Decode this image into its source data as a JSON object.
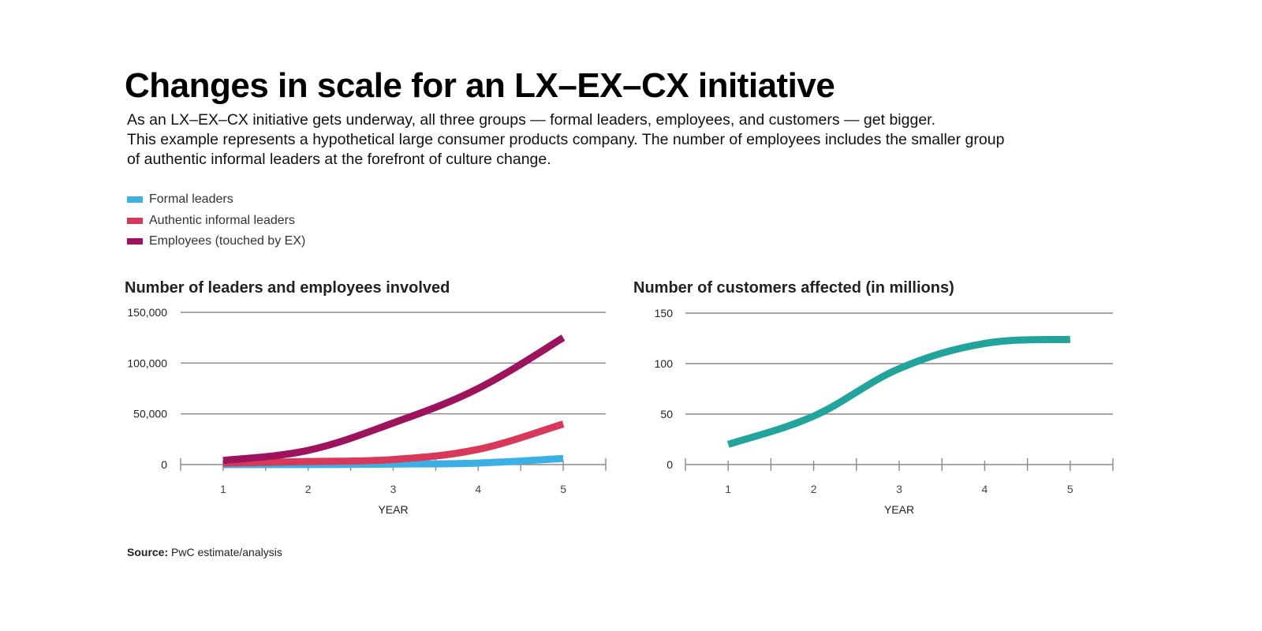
{
  "title": "Changes in scale for an LX–EX–CX initiative",
  "subtitle_lines": [
    "As an LX–EX–CX initiative gets underway, all three groups — formal leaders, employees, and customers — get bigger.",
    "This example represents a hypothetical large consumer products company. The number of employees includes the smaller group",
    "of authentic informal leaders at the forefront of culture change."
  ],
  "legend": [
    {
      "label": "Formal leaders",
      "color": "#3bb0e4"
    },
    {
      "label": "Authentic informal leaders",
      "color": "#d8395a"
    },
    {
      "label": "Employees (touched by EX)",
      "color": "#9e135e"
    }
  ],
  "source": {
    "label": "Source:",
    "text": "PwC estimate/analysis"
  },
  "chart_data": [
    {
      "type": "line",
      "title": "Number of leaders and employees involved",
      "xlabel": "YEAR",
      "ylabel": "",
      "x": [
        1,
        2,
        3,
        4,
        5
      ],
      "xticks": [
        "1",
        "2",
        "3",
        "4",
        "5"
      ],
      "xlim": [
        0.5,
        5.5
      ],
      "ylim": [
        0,
        150000
      ],
      "yticks": [
        0,
        50000,
        100000,
        150000
      ],
      "ytick_labels": [
        "0",
        "50,000",
        "100,000",
        "150,000"
      ],
      "grid": true,
      "legend_position": "top-left",
      "series": [
        {
          "name": "Employees (touched by EX)",
          "color": "#9e135e",
          "values": [
            4000,
            14000,
            41000,
            75000,
            125000
          ]
        },
        {
          "name": "Authentic informal leaders",
          "color": "#d8395a",
          "values": [
            1500,
            3000,
            5000,
            15000,
            40000
          ]
        },
        {
          "name": "Formal leaders",
          "color": "#3bb0e4",
          "values": [
            0,
            0,
            500,
            1500,
            6000
          ]
        }
      ]
    },
    {
      "type": "line",
      "title": "Number of customers affected (in millions)",
      "xlabel": "YEAR",
      "ylabel": "",
      "x": [
        1,
        2,
        3,
        4,
        5
      ],
      "xticks": [
        "1",
        "2",
        "3",
        "4",
        "5"
      ],
      "xlim": [
        0.5,
        5.5
      ],
      "ylim": [
        0,
        150
      ],
      "yticks": [
        0,
        50,
        100,
        150
      ],
      "ytick_labels": [
        "0",
        "50",
        "100",
        "150"
      ],
      "grid": true,
      "series": [
        {
          "name": "Customers affected (millions)",
          "color": "#22a39c",
          "values": [
            20,
            48,
            95,
            120,
            124
          ]
        }
      ]
    }
  ]
}
